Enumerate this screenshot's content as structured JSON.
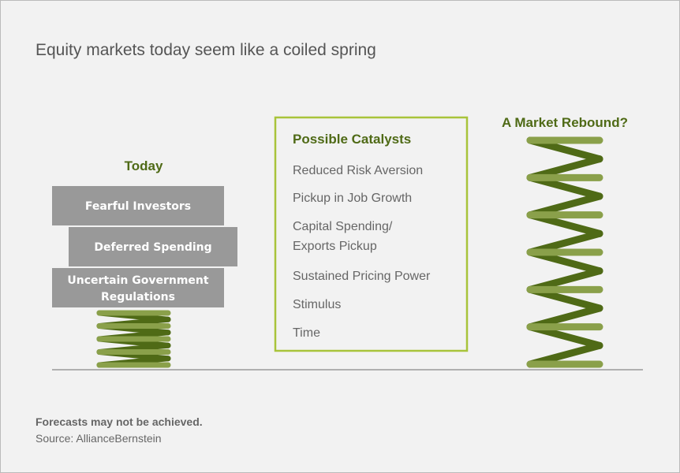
{
  "title": "Equity markets today seem like a coiled spring",
  "today": {
    "heading": "Today",
    "pressures": [
      "Fearful Investors",
      "Deferred Spending",
      [
        "Uncertain Government",
        "Regulations"
      ]
    ]
  },
  "catalysts": {
    "heading": "Possible Catalysts",
    "items": [
      "Reduced Risk Aversion",
      "Pickup in Job Growth",
      [
        "Capital Spending/",
        "Exports Pickup"
      ],
      "Sustained Pricing Power",
      "Stimulus",
      "Time"
    ]
  },
  "rebound": {
    "heading": "A Market Rebound?"
  },
  "footnote": "Forecasts may not be achieved.",
  "source": "Source: AllianceBernstein"
}
